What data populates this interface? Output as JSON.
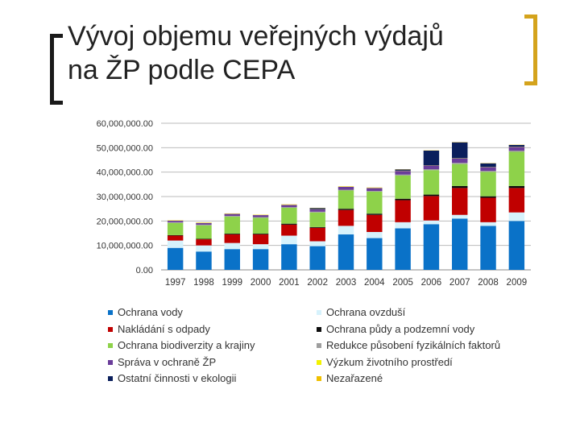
{
  "slide": {
    "title_line1": "Vývoj objemu veřejných výdajů",
    "title_line2": "na ŽP podle CEPA",
    "bracket_left_color": "#1a1a1a",
    "bracket_right_color": "#d4a31c"
  },
  "chart_data": {
    "type": "bar",
    "stacked": true,
    "categories": [
      "1997",
      "1998",
      "1999",
      "2000",
      "2001",
      "2002",
      "2003",
      "2004",
      "2005",
      "2006",
      "2007",
      "2008",
      "2009"
    ],
    "y_tick_labels": [
      "0.00",
      "10,000,000.00",
      "20,000,000.00",
      "30,000,000.00",
      "40,000,000.00",
      "50,000,000.00",
      "60,000,000.00"
    ],
    "ylim": [
      0,
      60000000
    ],
    "grid": true,
    "legend_position": "bottom",
    "series": [
      {
        "name": "Ochrana vody",
        "color": "#0a72c8",
        "values": [
          9000000,
          7500000,
          8500000,
          8500000,
          10500000,
          9700000,
          14500000,
          13000000,
          17000000,
          18700000,
          21000000,
          18000000,
          20000000
        ]
      },
      {
        "name": "Ochrana ovzduší",
        "color": "#d6f2fc",
        "values": [
          3000000,
          2500000,
          2500000,
          2000000,
          3500000,
          2000000,
          3500000,
          2500000,
          2500000,
          1500000,
          1500000,
          1500000,
          3500000
        ]
      },
      {
        "name": "Nakládání s odpady",
        "color": "#c00000",
        "values": [
          2000000,
          2500000,
          3500000,
          4000000,
          4500000,
          5500000,
          6500000,
          7000000,
          9000000,
          10000000,
          11000000,
          10000000,
          10000000
        ]
      },
      {
        "name": "Ochrana půdy a podzemní vody",
        "color": "#0d0d0d",
        "values": [
          200000,
          200000,
          300000,
          300000,
          400000,
          300000,
          500000,
          500000,
          600000,
          600000,
          800000,
          600000,
          800000
        ]
      },
      {
        "name": "Ochrana biodiverzity a krajiny",
        "color": "#8ed24a",
        "values": [
          5000000,
          5500000,
          7000000,
          6500000,
          6500000,
          6000000,
          7500000,
          9000000,
          9500000,
          10000000,
          9000000,
          10000000,
          14000000
        ]
      },
      {
        "name": "Redukce působení fyzikálních faktorů",
        "color": "#9e9e9e",
        "values": [
          300000,
          300000,
          300000,
          300000,
          300000,
          300000,
          300000,
          300000,
          400000,
          400000,
          500000,
          400000,
          500000
        ]
      },
      {
        "name": "Správa v ochraně ŽP",
        "color": "#6a3d9a",
        "values": [
          600000,
          700000,
          800000,
          800000,
          900000,
          900000,
          1200000,
          1200000,
          1500000,
          1500000,
          1800000,
          1500000,
          1500000
        ]
      },
      {
        "name": "Výzkum životního prostředí",
        "color": "#f2f200",
        "values": [
          100000,
          100000,
          100000,
          100000,
          100000,
          100000,
          100000,
          100000,
          100000,
          100000,
          100000,
          100000,
          100000
        ]
      },
      {
        "name": "Ostatní činnosti v ekologii",
        "color": "#0b1f5c",
        "values": [
          0,
          0,
          0,
          0,
          0,
          500000,
          0,
          0,
          500000,
          6000000,
          6500000,
          1500000,
          700000
        ]
      },
      {
        "name": "Nezařazené",
        "color": "#f0c000",
        "values": [
          100000,
          100000,
          100000,
          100000,
          100000,
          100000,
          100000,
          100000,
          100000,
          100000,
          100000,
          100000,
          100000
        ]
      }
    ],
    "legend_left": [
      {
        "name": "Ochrana vody",
        "color": "#0a72c8"
      },
      {
        "name": "Nakládání s odpady",
        "color": "#c00000"
      },
      {
        "name": "Ochrana biodiverzity a krajiny",
        "color": "#8ed24a"
      },
      {
        "name": "Správa v ochraně ŽP",
        "color": "#6a3d9a"
      },
      {
        "name": "Ostatní činnosti v ekologii",
        "color": "#0b1f5c"
      }
    ],
    "legend_right": [
      {
        "name": "Ochrana ovzduší",
        "color": "#d6f2fc"
      },
      {
        "name": "Ochrana půdy a podzemní vody",
        "color": "#0d0d0d"
      },
      {
        "name": "Redukce působení fyzikálních faktorů",
        "color": "#9e9e9e"
      },
      {
        "name": "Výzkum životního prostředí",
        "color": "#f2f200"
      },
      {
        "name": "Nezařazené",
        "color": "#f0c000"
      }
    ]
  }
}
